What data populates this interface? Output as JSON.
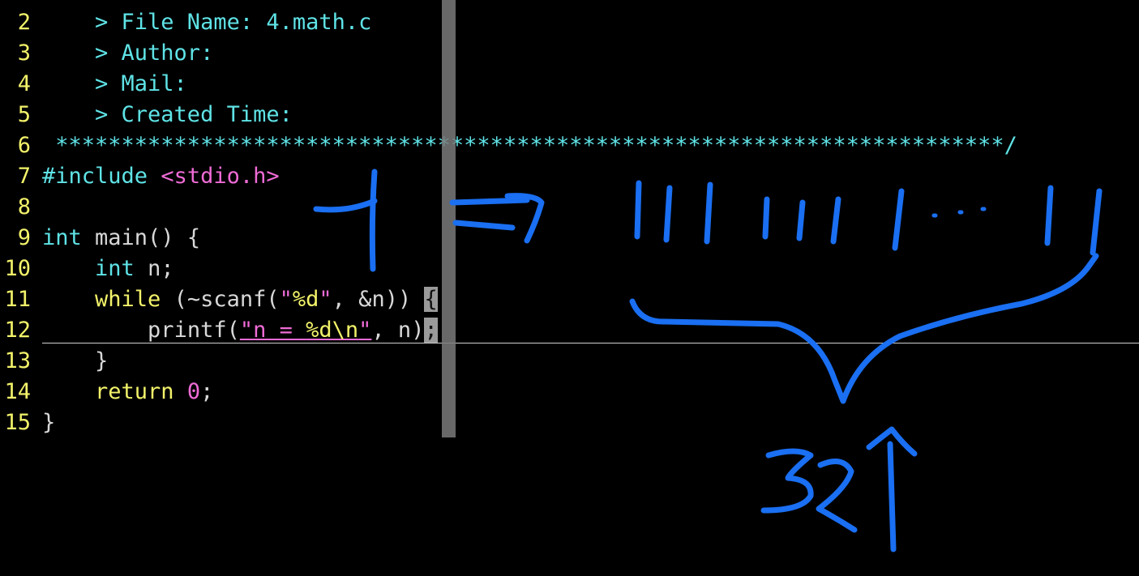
{
  "editor": {
    "lines": [
      {
        "num": "2",
        "parts": [
          {
            "t": "    > File Name: 4.math.c",
            "c": "cyan"
          }
        ]
      },
      {
        "num": "3",
        "parts": [
          {
            "t": "    > Author:",
            "c": "cyan"
          }
        ]
      },
      {
        "num": "4",
        "parts": [
          {
            "t": "    > Mail:",
            "c": "cyan"
          }
        ]
      },
      {
        "num": "5",
        "parts": [
          {
            "t": "    > Created Time:",
            "c": "cyan"
          }
        ]
      },
      {
        "num": "6",
        "parts": [
          {
            "t": " ************************************************************************/",
            "c": "cyan"
          }
        ]
      },
      {
        "num": "7",
        "parts": [
          {
            "t": "#include ",
            "c": "cyan"
          },
          {
            "t": "<stdio.h>",
            "c": "pink"
          }
        ]
      },
      {
        "num": "8",
        "parts": []
      },
      {
        "num": "9",
        "parts": [
          {
            "t": "int",
            "c": "cyan"
          },
          {
            "t": " main() {",
            "c": "plain"
          }
        ]
      },
      {
        "num": "10",
        "parts": [
          {
            "t": "    ",
            "c": "plain"
          },
          {
            "t": "int",
            "c": "cyan"
          },
          {
            "t": " n;",
            "c": "plain"
          }
        ]
      },
      {
        "num": "11",
        "parts": [
          {
            "t": "    ",
            "c": "plain"
          },
          {
            "t": "while",
            "c": "yellow"
          },
          {
            "t": " (~scanf(",
            "c": "plain"
          },
          {
            "t": "\"",
            "c": "pink"
          },
          {
            "t": "%d",
            "c": "yellow"
          },
          {
            "t": "\"",
            "c": "pink"
          },
          {
            "t": ", &n)) ",
            "c": "plain"
          },
          {
            "t": "{",
            "c": "hl"
          }
        ]
      },
      {
        "num": "12",
        "parts": [
          {
            "t": "    ",
            "c": "plain"
          },
          {
            "t": "    printf(",
            "c": "plain"
          },
          {
            "t": "\"n = ",
            "c": "pink ul"
          },
          {
            "t": "%d\\n",
            "c": "yellow ul"
          },
          {
            "t": "\"",
            "c": "pink ul"
          },
          {
            "t": ", n)",
            "c": "plain"
          },
          {
            "t": ";",
            "c": "hl"
          }
        ]
      },
      {
        "num": "13",
        "parts": [
          {
            "t": "    }",
            "c": "plain"
          }
        ]
      },
      {
        "num": "14",
        "parts": [
          {
            "t": "    ",
            "c": "plain"
          },
          {
            "t": "return",
            "c": "yellow"
          },
          {
            "t": " ",
            "c": "plain"
          },
          {
            "t": "0",
            "c": "pink"
          },
          {
            "t": ";",
            "c": "plain"
          }
        ]
      },
      {
        "num": "15",
        "parts": [
          {
            "t": "}",
            "c": "plain"
          }
        ]
      }
    ],
    "colors": {
      "background": "#000000",
      "line_number": "#f2f26a",
      "comment": "#5fe3e6",
      "string": "#ef6bd6",
      "keyword": "#f2f26a",
      "annotation_ink": "#1a6ff2"
    }
  },
  "annotation": {
    "description_icon": "handwritten-ink-icon"
  }
}
